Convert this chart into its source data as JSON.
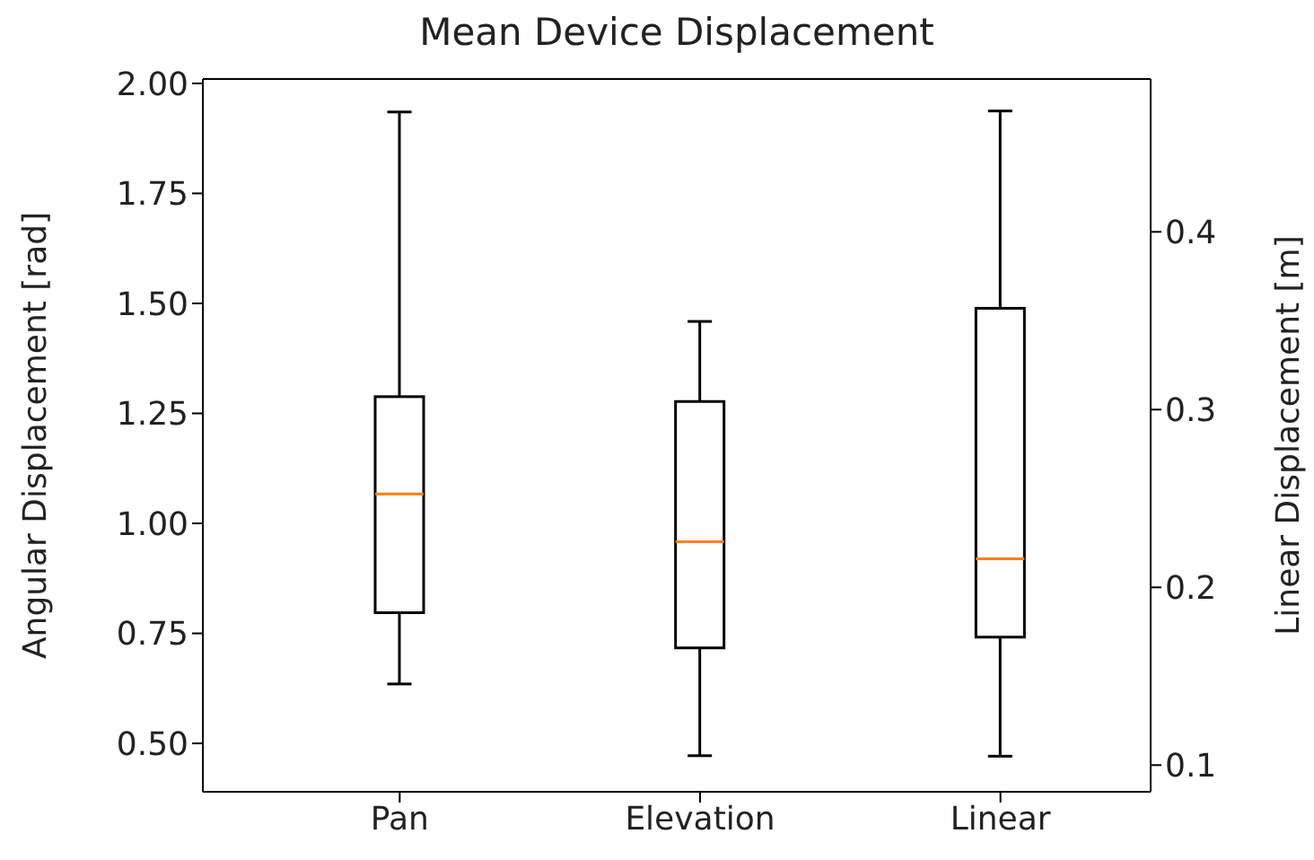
{
  "chart_data": {
    "type": "box",
    "title": "Mean Device Displacement",
    "ylabel": "Angular Displacement [rad]",
    "y2label": "Linear Displacement [m]",
    "categories": [
      "Pan",
      "Elevation",
      "Linear"
    ],
    "series": [
      {
        "color": "#000000",
        "boxes": [
          {
            "low": 0.635,
            "q1": 0.797,
            "median": 1.067,
            "q3": 1.288,
            "high": 1.935
          },
          {
            "low": 0.472,
            "q1": 0.717,
            "median": 0.958,
            "q3": 1.277,
            "high": 1.459
          },
          null
        ]
      },
      {
        "color": "#000000",
        "axis": "y2",
        "boxes": [
          null,
          null,
          {
            "low": 0.105,
            "q1": 0.172,
            "median": 0.216,
            "q3": 0.357,
            "high": 0.468
          }
        ]
      }
    ],
    "ylim": [
      0.39,
      2.01
    ],
    "yticks": [
      {
        "value": 0.5,
        "label": "0.50"
      },
      {
        "value": 0.75,
        "label": "0.75"
      },
      {
        "value": 1.0,
        "label": "1.00"
      },
      {
        "value": 1.25,
        "label": "1.25"
      },
      {
        "value": 1.5,
        "label": "1.50"
      },
      {
        "value": 1.75,
        "label": "1.75"
      },
      {
        "value": 2.0,
        "label": "2.00"
      }
    ],
    "y2lim": [
      0.085,
      0.486
    ],
    "y2ticks": [
      0.1,
      0.2,
      0.3,
      0.4
    ],
    "grid": false,
    "legend": false
  }
}
